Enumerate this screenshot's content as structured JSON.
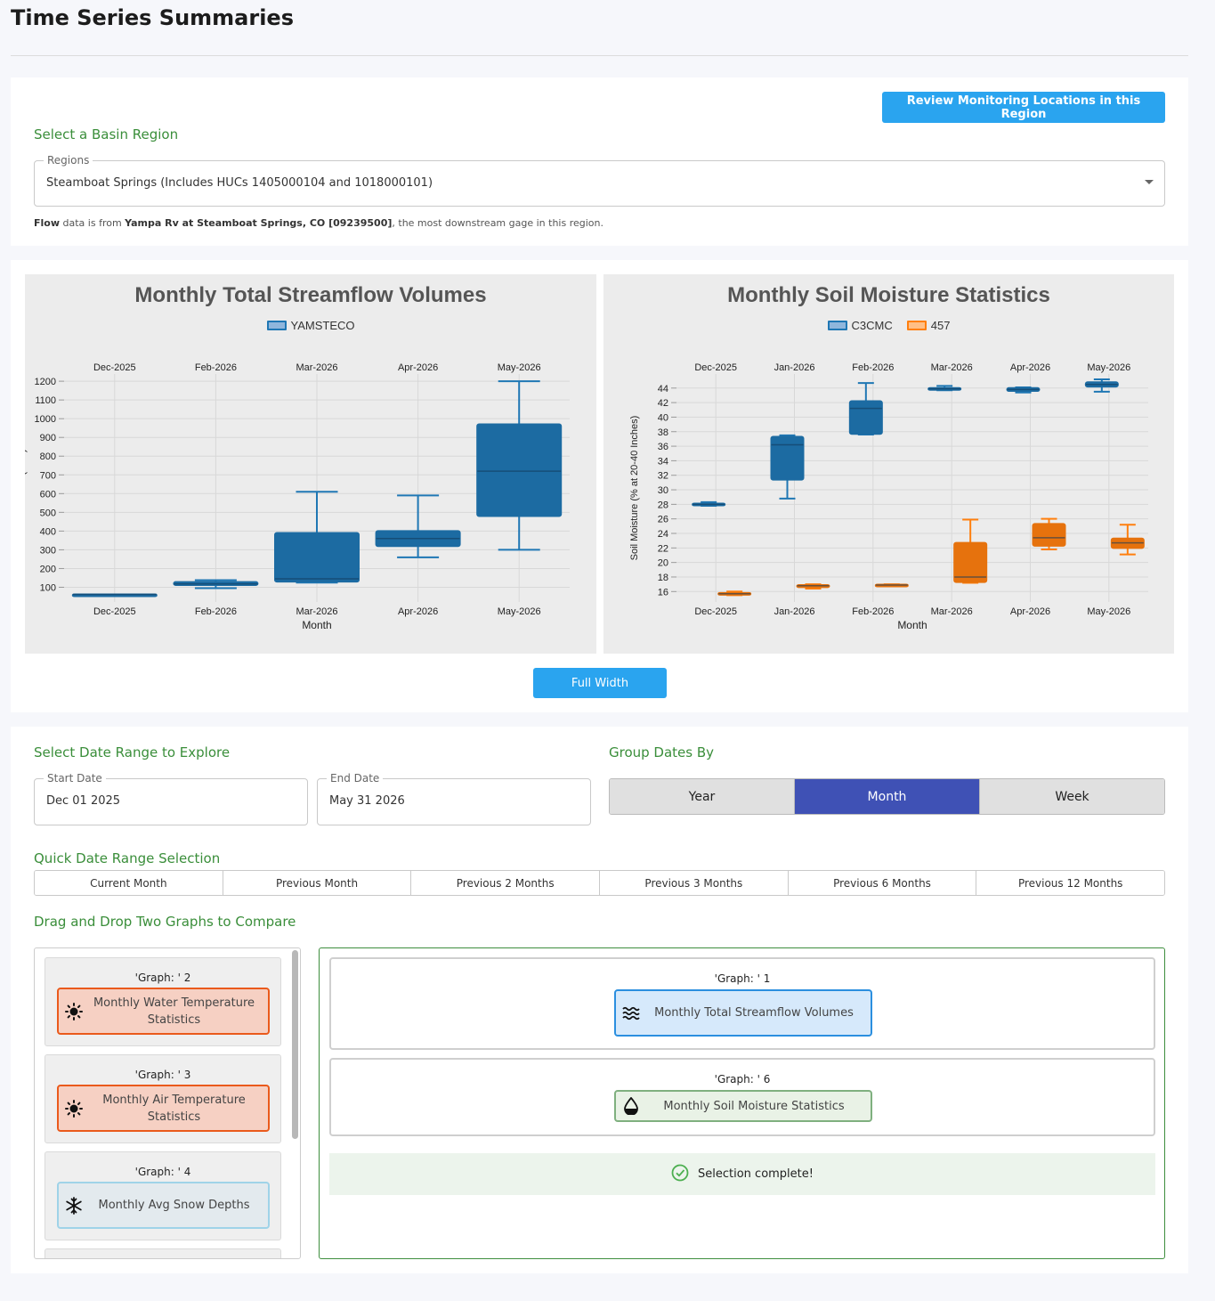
{
  "page": {
    "title": "Time Series Summaries"
  },
  "region": {
    "review_button": "Review Monitoring Locations in this Region",
    "section_label": "Select a Basin Region",
    "select_legend": "Regions",
    "select_value": "Steamboat Springs (Includes HUCs 1405000104 and 1018000101)",
    "note_bold1": "Flow",
    "note_text1": " data is from ",
    "note_bold2": "Yampa Rv at Steamboat Springs, CO [09239500]",
    "note_text2": ", the most downstream gage in this region."
  },
  "charts": {
    "full_width_button": "Full Width"
  },
  "chart_data": [
    {
      "type": "box",
      "title": "Monthly Total Streamflow Volumes",
      "xlabel": "Month",
      "ylabel": "Streamflow (CFS)",
      "ylim": [
        50,
        1210
      ],
      "yticks": [
        100,
        200,
        300,
        400,
        500,
        600,
        700,
        800,
        900,
        1000,
        1100,
        1200
      ],
      "categories": [
        "Dec-2025",
        "Feb-2026",
        "Mar-2026",
        "Apr-2026",
        "May-2026"
      ],
      "grid": true,
      "legend": "top-center",
      "series": [
        {
          "name": "YAMSTECO",
          "color": "#1f77b4",
          "fill": "#1f77b4",
          "boxes": [
            {
              "x": "Dec-2025",
              "min": 62,
              "q1": 62,
              "median": 62,
              "q3": 62,
              "max": 62
            },
            {
              "x": "Feb-2026",
              "min": 95,
              "q1": 112,
              "median": 118,
              "q3": 128,
              "max": 138
            },
            {
              "x": "Mar-2026",
              "min": 125,
              "q1": 130,
              "median": 145,
              "q3": 390,
              "max": 610
            },
            {
              "x": "Apr-2026",
              "min": 260,
              "q1": 320,
              "median": 360,
              "q3": 400,
              "max": 590
            },
            {
              "x": "May-2026",
              "min": 300,
              "q1": 480,
              "median": 720,
              "q3": 970,
              "max": 1200
            }
          ]
        }
      ]
    },
    {
      "type": "box",
      "title": "Monthly Soil Moisture Statistics",
      "xlabel": "Month",
      "ylabel": "Soil Moisture (% at 20-40 Inches)",
      "ylim": [
        15.3,
        45.2
      ],
      "yticks": [
        16,
        18,
        20,
        22,
        24,
        26,
        28,
        30,
        32,
        34,
        36,
        38,
        40,
        42,
        44
      ],
      "categories": [
        "Dec-2025",
        "Jan-2026",
        "Feb-2026",
        "Mar-2026",
        "Apr-2026",
        "May-2026"
      ],
      "grid": true,
      "legend": "top-center",
      "series": [
        {
          "name": "C3CMC",
          "color": "#1f77b4",
          "fill": "#1f77b4",
          "boxes": [
            {
              "x": "Dec-2025",
              "min": 27.8,
              "q1": 27.9,
              "median": 28.0,
              "q3": 28.1,
              "max": 28.3
            },
            {
              "x": "Jan-2026",
              "min": 28.8,
              "q1": 31.4,
              "median": 36.2,
              "q3": 37.3,
              "max": 37.5
            },
            {
              "x": "Feb-2026",
              "min": 37.6,
              "q1": 37.7,
              "median": 41.2,
              "q3": 42.2,
              "max": 44.7
            },
            {
              "x": "Mar-2026",
              "min": 43.7,
              "q1": 43.8,
              "median": 43.9,
              "q3": 44.0,
              "max": 44.3
            },
            {
              "x": "Apr-2026",
              "min": 43.4,
              "q1": 43.6,
              "median": 43.8,
              "q3": 44.0,
              "max": 44.1
            },
            {
              "x": "May-2026",
              "min": 43.5,
              "q1": 44.2,
              "median": 44.5,
              "q3": 44.8,
              "max": 45.2
            }
          ]
        },
        {
          "name": "457",
          "color": "#ff7f0e",
          "fill": "#ff7f0e",
          "boxes": [
            {
              "x": "Dec-2025",
              "min": 15.5,
              "q1": 15.6,
              "median": 15.7,
              "q3": 15.8,
              "max": 16.0
            },
            {
              "x": "Jan-2026",
              "min": 16.4,
              "q1": 16.6,
              "median": 16.8,
              "q3": 16.9,
              "max": 17.0
            },
            {
              "x": "Feb-2026",
              "min": 16.8,
              "q1": 16.85,
              "median": 16.9,
              "q3": 16.95,
              "max": 17.0
            },
            {
              "x": "Mar-2026",
              "min": 17.2,
              "q1": 17.3,
              "median": 18.0,
              "q3": 22.7,
              "max": 25.9
            },
            {
              "x": "Apr-2026",
              "min": 21.8,
              "q1": 22.3,
              "median": 23.4,
              "q3": 25.3,
              "max": 26.0
            },
            {
              "x": "May-2026",
              "min": 21.1,
              "q1": 22.0,
              "median": 22.7,
              "q3": 23.3,
              "max": 25.2
            }
          ]
        }
      ]
    }
  ],
  "dates": {
    "section_label": "Select Date Range to Explore",
    "start_legend": "Start Date",
    "start_value": "Dec 01 2025",
    "end_legend": "End Date",
    "end_value": "May 31 2026"
  },
  "group": {
    "section_label": "Group Dates By",
    "options": [
      "Year",
      "Month",
      "Week"
    ],
    "active": "Month"
  },
  "quick": {
    "section_label": "Quick Date Range Selection",
    "options": [
      "Current Month",
      "Previous Month",
      "Previous 2 Months",
      "Previous 3 Months",
      "Previous 6 Months",
      "Previous 12 Months"
    ]
  },
  "compare": {
    "section_label": "Drag and Drop Two Graphs to Compare",
    "available": [
      {
        "head": "'Graph: ' 2",
        "label": "Monthly Water Temperature Statistics",
        "icon": "sun-icon",
        "kind": "warm"
      },
      {
        "head": "'Graph: ' 3",
        "label": "Monthly Air Temperature Statistics",
        "icon": "sun-icon",
        "kind": "warm"
      },
      {
        "head": "'Graph: ' 4",
        "label": "Monthly Avg Snow Depths",
        "icon": "snowflake-icon",
        "kind": "cold"
      }
    ],
    "selected": [
      {
        "head": "'Graph: ' 1",
        "label": "Monthly Total Streamflow Volumes",
        "icon": "water-waves-icon",
        "kind": "flow"
      },
      {
        "head": "'Graph: ' 6",
        "label": "Monthly Soil Moisture Statistics",
        "icon": "water-drop-icon",
        "kind": "soil"
      }
    ],
    "complete_text": "Selection complete!"
  }
}
